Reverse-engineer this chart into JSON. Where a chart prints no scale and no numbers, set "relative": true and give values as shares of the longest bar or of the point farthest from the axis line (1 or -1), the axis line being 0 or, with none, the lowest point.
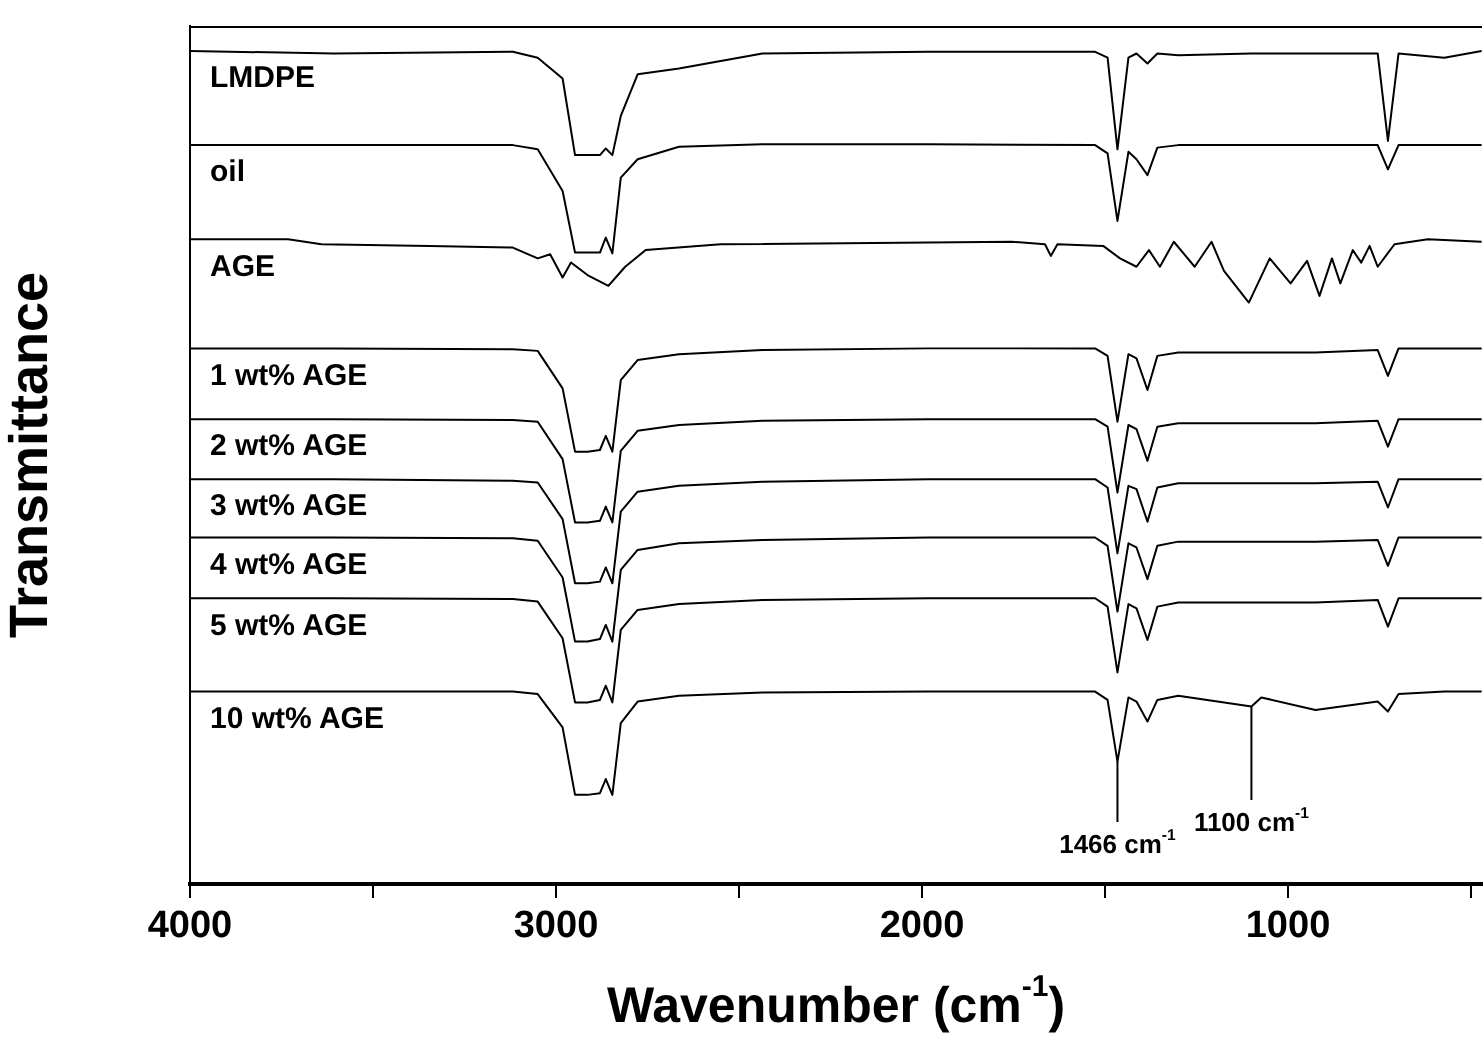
{
  "chart_data": {
    "type": "line",
    "relative": true,
    "xlabel": "Wavenumber (cm$^{-1}$)",
    "ylabel": "Transmittance",
    "xlim": [
      4000,
      470
    ],
    "xticks": [
      4000,
      {
        "value": 3500,
        "label": null
      },
      3000,
      {
        "value": 2500,
        "label": null
      },
      2000,
      {
        "value": 1500,
        "label": null
      },
      1000,
      {
        "value": 500,
        "label": null
      }
    ],
    "x": [
      4000,
      3607,
      3118,
      3050,
      2982,
      2948,
      2914,
      2880,
      2864,
      2846,
      2823,
      2777,
      2664,
      2436,
      1982,
      1527,
      1493,
      1466,
      1436,
      1414,
      1384,
      1357,
      1300,
      1100,
      1073,
      925,
      755,
      727,
      698,
      573,
      471
    ],
    "series": [
      {
        "name": "LMDPE",
        "color": "#000000",
        "values": [
          1.0,
          0.997,
          0.999,
          0.992,
          0.967,
          0.875,
          0.875,
          0.875,
          0.883,
          0.875,
          0.922,
          0.972,
          0.979,
          0.997,
          0.999,
          0.999,
          0.992,
          0.882,
          0.992,
          0.997,
          0.985,
          0.997,
          0.995,
          0.997,
          0.997,
          0.997,
          0.997,
          0.892,
          0.997,
          0.992,
          1.0
        ]
      },
      {
        "name": "oil",
        "color": "#000000",
        "values": [
          0.887,
          0.887,
          0.887,
          0.882,
          0.832,
          0.758,
          0.758,
          0.758,
          0.776,
          0.757,
          0.848,
          0.87,
          0.885,
          0.888,
          0.888,
          0.887,
          0.877,
          0.796,
          0.879,
          0.87,
          0.851,
          0.884,
          0.887,
          0.887,
          0.887,
          0.887,
          0.887,
          0.858,
          0.887,
          0.887,
          0.887
        ]
      },
      {
        "name": "AGE",
        "color": "#000000",
        "x": [
          4000,
          3732,
          3641,
          3346,
          3118,
          3050,
          3016,
          2982,
          2959,
          2914,
          2857,
          2811,
          2755,
          2550,
          1755,
          1664,
          1648,
          1630,
          1505,
          1459,
          1414,
          1380,
          1350,
          1312,
          1255,
          1209,
          1175,
          1107,
          1050,
          993,
          948,
          914,
          880,
          857,
          823,
          800,
          777,
          755,
          709,
          618,
          471
        ],
        "values": [
          0.774,
          0.774,
          0.768,
          0.766,
          0.764,
          0.751,
          0.756,
          0.728,
          0.746,
          0.731,
          0.718,
          0.741,
          0.761,
          0.768,
          0.771,
          0.768,
          0.754,
          0.768,
          0.766,
          0.751,
          0.741,
          0.761,
          0.741,
          0.771,
          0.741,
          0.771,
          0.736,
          0.698,
          0.751,
          0.721,
          0.748,
          0.706,
          0.751,
          0.721,
          0.761,
          0.746,
          0.766,
          0.741,
          0.768,
          0.774,
          0.771
        ]
      },
      {
        "name": "1 wt% AGE",
        "color": "#000000",
        "values": [
          0.643,
          0.643,
          0.642,
          0.64,
          0.595,
          0.519,
          0.519,
          0.521,
          0.538,
          0.519,
          0.605,
          0.629,
          0.636,
          0.641,
          0.643,
          0.643,
          0.634,
          0.555,
          0.636,
          0.631,
          0.593,
          0.634,
          0.638,
          0.638,
          0.638,
          0.638,
          0.641,
          0.61,
          0.643,
          0.643,
          0.643
        ]
      },
      {
        "name": "2 wt% AGE",
        "color": "#000000",
        "values": [
          0.558,
          0.558,
          0.557,
          0.555,
          0.51,
          0.434,
          0.434,
          0.436,
          0.453,
          0.434,
          0.52,
          0.544,
          0.551,
          0.556,
          0.558,
          0.558,
          0.549,
          0.47,
          0.551,
          0.546,
          0.508,
          0.549,
          0.553,
          0.553,
          0.553,
          0.553,
          0.556,
          0.525,
          0.558,
          0.558,
          0.558
        ]
      },
      {
        "name": "3 wt% AGE",
        "color": "#000000",
        "values": [
          0.486,
          0.486,
          0.484,
          0.482,
          0.438,
          0.361,
          0.361,
          0.363,
          0.38,
          0.361,
          0.447,
          0.471,
          0.478,
          0.483,
          0.486,
          0.486,
          0.476,
          0.397,
          0.478,
          0.474,
          0.435,
          0.476,
          0.481,
          0.481,
          0.481,
          0.481,
          0.483,
          0.452,
          0.486,
          0.486,
          0.486
        ]
      },
      {
        "name": "4 wt% AGE",
        "color": "#000000",
        "values": [
          0.416,
          0.416,
          0.415,
          0.412,
          0.368,
          0.291,
          0.291,
          0.294,
          0.311,
          0.291,
          0.377,
          0.401,
          0.409,
          0.413,
          0.416,
          0.416,
          0.406,
          0.327,
          0.409,
          0.404,
          0.366,
          0.406,
          0.411,
          0.411,
          0.411,
          0.411,
          0.413,
          0.382,
          0.416,
          0.416,
          0.416
        ]
      },
      {
        "name": "5 wt% AGE",
        "color": "#000000",
        "values": [
          0.343,
          0.343,
          0.342,
          0.339,
          0.295,
          0.218,
          0.218,
          0.221,
          0.238,
          0.218,
          0.305,
          0.329,
          0.336,
          0.341,
          0.343,
          0.343,
          0.333,
          0.254,
          0.336,
          0.331,
          0.293,
          0.333,
          0.338,
          0.338,
          0.338,
          0.338,
          0.341,
          0.309,
          0.343,
          0.343,
          0.343
        ]
      },
      {
        "name": "10 wt% AGE",
        "color": "#000000",
        "values": [
          0.231,
          0.231,
          0.231,
          0.228,
          0.188,
          0.107,
          0.107,
          0.109,
          0.126,
          0.107,
          0.193,
          0.219,
          0.226,
          0.23,
          0.231,
          0.231,
          0.221,
          0.147,
          0.224,
          0.219,
          0.195,
          0.221,
          0.226,
          0.213,
          0.224,
          0.209,
          0.219,
          0.207,
          0.228,
          0.231,
          0.231
        ]
      }
    ],
    "annotations": [
      {
        "text": "1466 cm$^{-1}$",
        "x": 1466,
        "y": 0.147
      },
      {
        "text": "1100 cm$^{-1}$",
        "x": 1100,
        "y": 0.213
      }
    ]
  }
}
